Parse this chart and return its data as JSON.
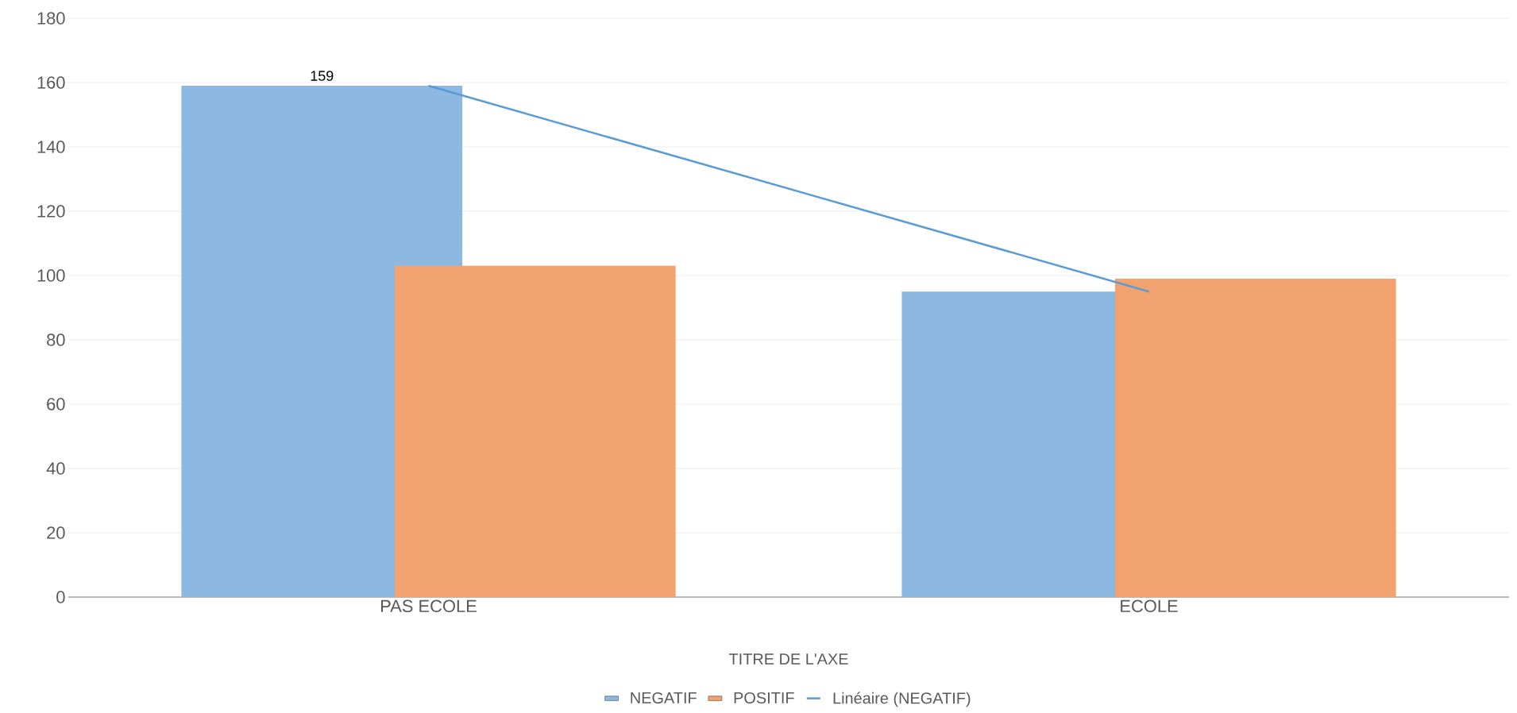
{
  "chart_data": {
    "type": "bar",
    "xlabel": "TITRE DE L'AXE",
    "categories": [
      "PAS ECOLE",
      "ECOLE"
    ],
    "series": [
      {
        "name": "NEGATIF",
        "color": "#8db8e2",
        "values": [
          159,
          95
        ],
        "value_labels": [
          "159",
          null
        ]
      },
      {
        "name": "POSITIF",
        "color": "#f2a26e",
        "values": [
          103,
          99
        ]
      },
      {
        "name": "Linéaire (NEGATIF)",
        "type": "line",
        "color": "#5b9bd5",
        "values": [
          159,
          95
        ]
      }
    ],
    "ylim": [
      0,
      180
    ],
    "yticks": [
      0,
      20,
      40,
      60,
      80,
      100,
      120,
      140,
      160,
      180
    ],
    "grid": "y",
    "legend": "bottom"
  }
}
